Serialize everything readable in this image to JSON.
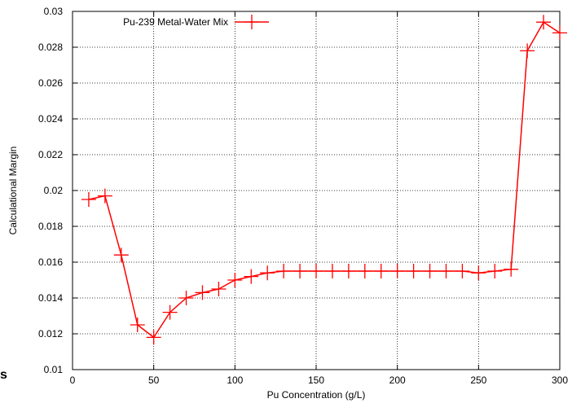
{
  "chart_data": {
    "type": "line",
    "title": "",
    "xlabel": "Pu Concentration (g/L)",
    "ylabel": "Calculational Margin",
    "xlim": [
      0,
      300
    ],
    "ylim": [
      0.01,
      0.03
    ],
    "x_ticks": [
      0,
      50,
      100,
      150,
      200,
      250,
      300
    ],
    "x_tick_labels": [
      "0",
      "50",
      "100",
      "150",
      "200",
      "250",
      "300"
    ],
    "y_ticks": [
      0.01,
      0.012,
      0.014,
      0.016,
      0.018,
      0.02,
      0.022,
      0.024,
      0.026,
      0.028,
      0.03
    ],
    "y_tick_labels": [
      "0.01",
      "0.012",
      "0.014",
      "0.016",
      "0.018",
      "0.02",
      "0.022",
      "0.024",
      "0.026",
      "0.028",
      "0.03"
    ],
    "grid": true,
    "legend_position": "top-left",
    "series": [
      {
        "name": "Pu-239 Metal-Water Mix",
        "color": "#ff0000",
        "marker": "plus",
        "x": [
          10,
          20,
          30,
          40,
          50,
          60,
          70,
          80,
          90,
          100,
          110,
          120,
          130,
          140,
          150,
          160,
          170,
          180,
          190,
          200,
          210,
          220,
          230,
          240,
          250,
          260,
          270,
          280,
          290,
          300
        ],
        "y": [
          0.0195,
          0.0197,
          0.0164,
          0.0125,
          0.0118,
          0.0132,
          0.014,
          0.0143,
          0.0145,
          0.015,
          0.0152,
          0.0154,
          0.0155,
          0.0155,
          0.0155,
          0.0155,
          0.0155,
          0.0155,
          0.0155,
          0.0155,
          0.0155,
          0.0155,
          0.0155,
          0.0155,
          0.0154,
          0.0155,
          0.0156,
          0.0278,
          0.0294,
          0.0288
        ]
      }
    ]
  },
  "page_fragment_text": "s"
}
